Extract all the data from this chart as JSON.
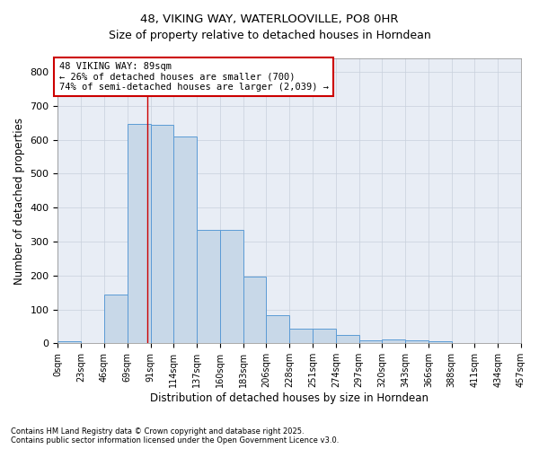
{
  "title_line1": "48, VIKING WAY, WATERLOOVILLE, PO8 0HR",
  "title_line2": "Size of property relative to detached houses in Horndean",
  "xlabel": "Distribution of detached houses by size in Horndean",
  "ylabel": "Number of detached properties",
  "bar_values": [
    5,
    0,
    145,
    648,
    645,
    610,
    335,
    335,
    198,
    83,
    43,
    43,
    25,
    10,
    12,
    10,
    5,
    0,
    0,
    0
  ],
  "categories": [
    "0sqm",
    "23sqm",
    "46sqm",
    "69sqm",
    "91sqm",
    "114sqm",
    "137sqm",
    "160sqm",
    "183sqm",
    "206sqm",
    "228sqm",
    "251sqm",
    "274sqm",
    "297sqm",
    "320sqm",
    "343sqm",
    "366sqm",
    "388sqm",
    "411sqm",
    "434sqm",
    "457sqm"
  ],
  "bar_color": "#c8d8e8",
  "bar_edge_color": "#5b9bd5",
  "grid_color": "#c8d0dc",
  "vline_color": "#cc0000",
  "annotation_text": "48 VIKING WAY: 89sqm\n← 26% of detached houses are smaller (700)\n74% of semi-detached houses are larger (2,039) →",
  "annotation_box_color": "#cc0000",
  "ylim": [
    0,
    840
  ],
  "yticks": [
    0,
    100,
    200,
    300,
    400,
    500,
    600,
    700,
    800
  ],
  "footnote": "Contains HM Land Registry data © Crown copyright and database right 2025.\nContains public sector information licensed under the Open Government Licence v3.0.",
  "bin_width": 23,
  "property_sqm": 89,
  "bg_color": "#e8edf5"
}
